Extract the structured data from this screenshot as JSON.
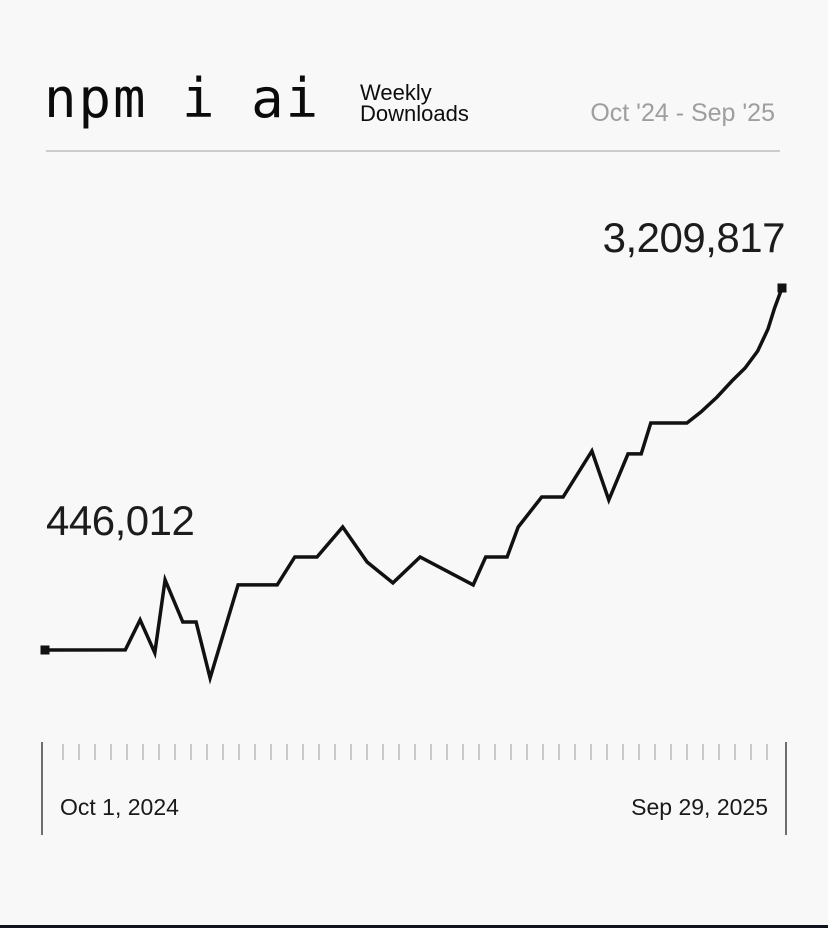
{
  "header": {
    "title": "npm i ai",
    "subtitle": "Weekly Downloads",
    "date_range": "Oct '24 - Sep '25"
  },
  "axis": {
    "start_date": "Oct 1, 2024",
    "end_date": "Sep 29, 2025",
    "tick_count": 45
  },
  "colors": {
    "background": "#f8f8f8",
    "line": "#111111",
    "text": "#151515",
    "muted_text": "#9e9e9e",
    "divider": "#cccccc",
    "tick": "#c9c9c9",
    "axis_cap": "#6e6e6e"
  },
  "chart_data": {
    "type": "line",
    "title": "npm i ai",
    "ylabel": "Weekly Downloads",
    "x_range": {
      "start": "Oct 1, 2024",
      "end": "Sep 29, 2025"
    },
    "grid": false,
    "legend": false,
    "line_color": "#111111",
    "start_point": {
      "label": "446,012",
      "value": 446012
    },
    "end_point": {
      "label": "3,209,817",
      "value": 3209817
    },
    "ylim": [
      0,
      3400000
    ],
    "points": [
      {
        "t": 0.0,
        "v": 446012
      },
      {
        "t": 0.109,
        "v": 447000
      },
      {
        "t": 0.129,
        "v": 676000
      },
      {
        "t": 0.149,
        "v": 424000
      },
      {
        "t": 0.163,
        "v": 981000
      },
      {
        "t": 0.187,
        "v": 660000
      },
      {
        "t": 0.205,
        "v": 660000
      },
      {
        "t": 0.224,
        "v": 232000
      },
      {
        "t": 0.262,
        "v": 943000
      },
      {
        "t": 0.315,
        "v": 943000
      },
      {
        "t": 0.339,
        "v": 1156000
      },
      {
        "t": 0.369,
        "v": 1156000
      },
      {
        "t": 0.404,
        "v": 1385000
      },
      {
        "t": 0.437,
        "v": 1118000
      },
      {
        "t": 0.472,
        "v": 958000
      },
      {
        "t": 0.509,
        "v": 1156000
      },
      {
        "t": 0.581,
        "v": 943000
      },
      {
        "t": 0.598,
        "v": 1156000
      },
      {
        "t": 0.627,
        "v": 1156000
      },
      {
        "t": 0.642,
        "v": 1385000
      },
      {
        "t": 0.674,
        "v": 1614000
      },
      {
        "t": 0.703,
        "v": 1614000
      },
      {
        "t": 0.742,
        "v": 1965000
      },
      {
        "t": 0.765,
        "v": 1591000
      },
      {
        "t": 0.791,
        "v": 1943000
      },
      {
        "t": 0.809,
        "v": 1943000
      },
      {
        "t": 0.822,
        "v": 2179000
      },
      {
        "t": 0.871,
        "v": 2179000
      },
      {
        "t": 0.89,
        "v": 2263000
      },
      {
        "t": 0.912,
        "v": 2378000
      },
      {
        "t": 0.932,
        "v": 2500000
      },
      {
        "t": 0.95,
        "v": 2599000
      },
      {
        "t": 0.967,
        "v": 2729000
      },
      {
        "t": 0.981,
        "v": 2897000
      },
      {
        "t": 0.99,
        "v": 3057000
      },
      {
        "t": 1.0,
        "v": 3209817
      }
    ]
  }
}
